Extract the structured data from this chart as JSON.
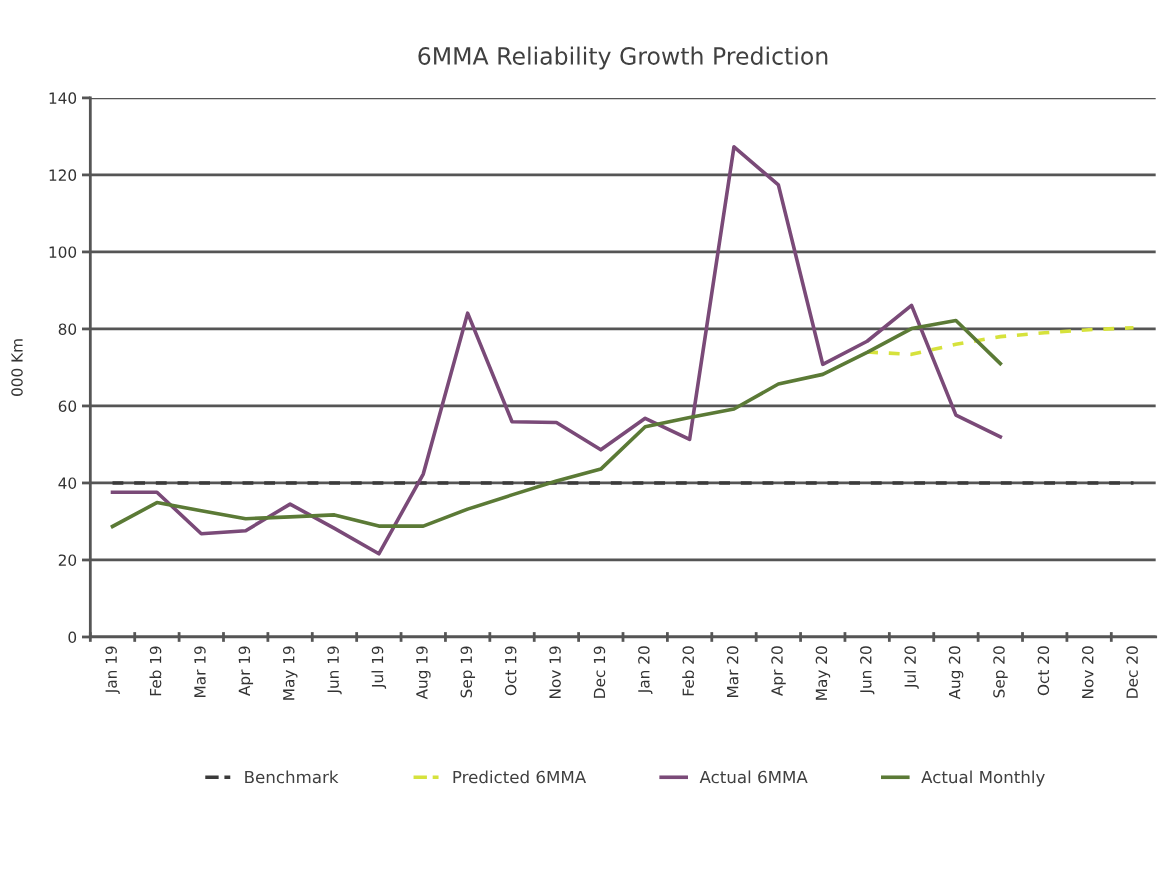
{
  "chart_data": {
    "type": "line",
    "title": "6MMA Reliability Growth Prediction",
    "ylabel": "000 Km",
    "categories": [
      "Jan 19",
      "Feb 19",
      "Mar 19",
      "Apr 19",
      "May 19",
      "Jun 19",
      "Jul 19",
      "Aug 19",
      "Sep 19",
      "Oct 19",
      "Nov 19",
      "Dec 19",
      "Jan 20",
      "Feb 20",
      "Mar 20",
      "Apr 20",
      "May 20",
      "Jun 20",
      "Jul 20",
      "Aug 20",
      "Sep 20",
      "Oct 20",
      "Nov 20",
      "Dec 20"
    ],
    "series": [
      {
        "name": "Benchmark",
        "color": "#3a3a3a",
        "line_style": "dashed",
        "values": [
          40,
          40,
          40,
          40,
          40,
          40,
          40,
          40,
          40,
          40,
          40,
          40,
          40,
          40,
          40,
          40,
          40,
          40,
          40,
          40,
          40,
          40,
          40,
          40
        ]
      },
      {
        "name": "Predicted 6MMA",
        "color": "#d6e23c",
        "line_style": "dashed",
        "values": [
          null,
          null,
          null,
          null,
          null,
          null,
          null,
          null,
          null,
          null,
          null,
          null,
          null,
          null,
          null,
          null,
          null,
          74,
          73.4,
          76,
          78,
          79,
          79.8,
          80.3
        ]
      },
      {
        "name": "Actual 6MMA",
        "color": "#7a4a78",
        "line_style": "solid",
        "values": [
          37.6,
          37.6,
          26.8,
          27.6,
          34.5,
          28.2,
          21.6,
          42.3,
          84.1,
          55.9,
          55.7,
          48.6,
          56.8,
          51.3,
          127.3,
          117.4,
          70.8,
          76.8,
          86.1,
          57.6,
          52,
          null,
          null,
          null
        ]
      },
      {
        "name": "Actual Monthly",
        "color": "#5b7a36",
        "line_style": "solid",
        "values": [
          28.7,
          34.9,
          32.8,
          30.7,
          31.2,
          31.7,
          28.8,
          28.8,
          33.2,
          36.9,
          40.5,
          43.6,
          54.6,
          57,
          59.2,
          65.7,
          68.2,
          73.9,
          80.1,
          82.2,
          71,
          null,
          null,
          null
        ]
      }
    ],
    "ylim": [
      0,
      140
    ],
    "yticks": [
      0,
      20,
      40,
      60,
      80,
      100,
      120,
      140
    ],
    "grid": "y",
    "legend": "bottom",
    "marker": "none"
  }
}
